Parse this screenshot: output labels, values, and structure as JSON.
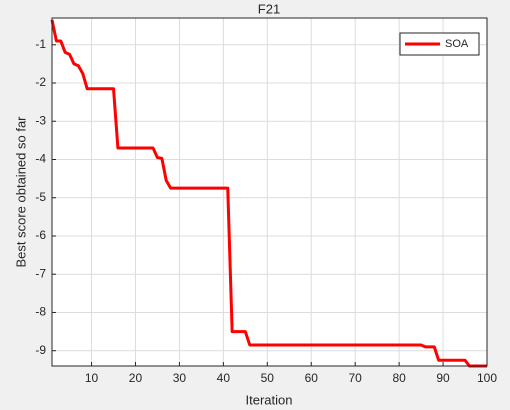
{
  "chart_data": {
    "type": "line",
    "title": "F21",
    "x_label": "Iteration",
    "y_label": "Best score obtained so far",
    "x": [
      1,
      2,
      3,
      4,
      5,
      6,
      7,
      8,
      9,
      10,
      11,
      12,
      13,
      14,
      15,
      16,
      17,
      18,
      19,
      20,
      21,
      22,
      23,
      24,
      25,
      26,
      27,
      28,
      29,
      30,
      31,
      32,
      33,
      34,
      35,
      36,
      37,
      38,
      39,
      40,
      41,
      42,
      43,
      44,
      45,
      46,
      47,
      48,
      49,
      50,
      51,
      52,
      53,
      54,
      55,
      56,
      57,
      58,
      59,
      60,
      61,
      62,
      63,
      64,
      65,
      66,
      67,
      68,
      69,
      70,
      71,
      72,
      73,
      74,
      75,
      76,
      77,
      78,
      79,
      80,
      81,
      82,
      83,
      84,
      85,
      86,
      87,
      88,
      89,
      90,
      91,
      92,
      93,
      94,
      95,
      96,
      97,
      98,
      99,
      100
    ],
    "series": [
      {
        "name": "SOA",
        "color": "#ff0000",
        "values": [
          -0.35,
          -0.9,
          -0.9,
          -1.2,
          -1.25,
          -1.5,
          -1.55,
          -1.75,
          -2.15,
          -2.15,
          -2.15,
          -2.15,
          -2.15,
          -2.15,
          -2.15,
          -3.7,
          -3.7,
          -3.7,
          -3.7,
          -3.7,
          -3.7,
          -3.7,
          -3.7,
          -3.7,
          -3.95,
          -3.97,
          -4.55,
          -4.75,
          -4.75,
          -4.75,
          -4.75,
          -4.75,
          -4.75,
          -4.75,
          -4.75,
          -4.75,
          -4.75,
          -4.75,
          -4.75,
          -4.75,
          -4.75,
          -8.5,
          -8.5,
          -8.5,
          -8.5,
          -8.85,
          -8.85,
          -8.85,
          -8.85,
          -8.85,
          -8.85,
          -8.85,
          -8.85,
          -8.85,
          -8.85,
          -8.85,
          -8.85,
          -8.85,
          -8.85,
          -8.85,
          -8.85,
          -8.85,
          -8.85,
          -8.85,
          -8.85,
          -8.85,
          -8.85,
          -8.85,
          -8.85,
          -8.85,
          -8.85,
          -8.85,
          -8.85,
          -8.85,
          -8.85,
          -8.85,
          -8.85,
          -8.85,
          -8.85,
          -8.85,
          -8.85,
          -8.85,
          -8.85,
          -8.85,
          -8.85,
          -8.9,
          -8.9,
          -8.9,
          -9.25,
          -9.25,
          -9.25,
          -9.25,
          -9.25,
          -9.25,
          -9.25,
          -9.4,
          -9.4,
          -9.4,
          -9.4,
          -9.4
        ]
      }
    ],
    "xlim": [
      1,
      100
    ],
    "xticks": [
      10,
      20,
      30,
      40,
      50,
      60,
      70,
      80,
      90,
      100
    ],
    "ylim": [
      -9.4,
      -0.3
    ],
    "yticks": [
      -1,
      -2,
      -3,
      -4,
      -5,
      -6,
      -7,
      -8,
      -9
    ],
    "grid": true,
    "legend": "top-right"
  }
}
